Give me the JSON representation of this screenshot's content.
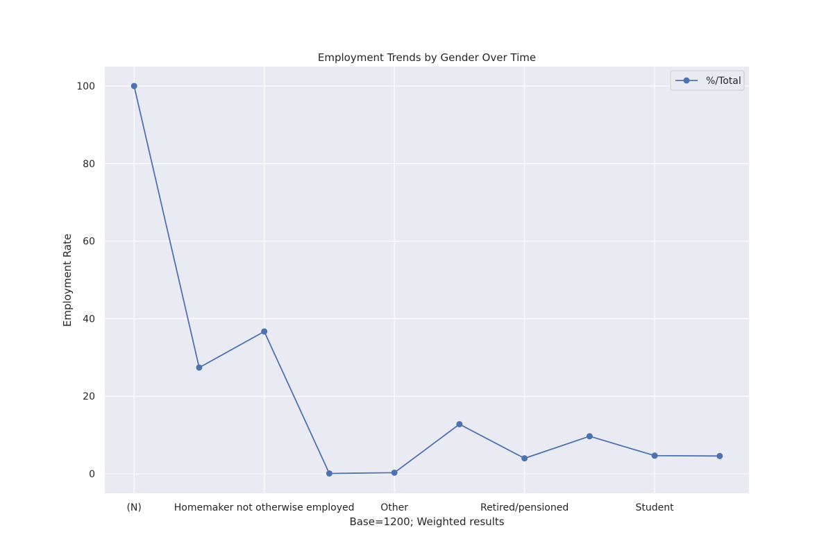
{
  "chart_data": {
    "type": "line",
    "title": "Employment Trends by Gender Over Time",
    "xlabel": "Base=1200; Weighted results",
    "ylabel": "Employment Rate",
    "x_tick_labels": [
      "(N)",
      "Homemaker not otherwise employed",
      "Other",
      "Retired/pensioned",
      "Student"
    ],
    "x_tick_positions": [
      0,
      2,
      4,
      6,
      8
    ],
    "x": [
      0,
      1,
      2,
      3,
      4,
      5,
      6,
      7,
      8,
      9
    ],
    "y_ticks": [
      0,
      20,
      40,
      60,
      80,
      100
    ],
    "ylim": [
      -5,
      105
    ],
    "xlim": [
      -0.45,
      9.45
    ],
    "grid": true,
    "legend_position": "top-right",
    "series": [
      {
        "name": "%/Total",
        "color": "#4c72b0",
        "values": [
          100,
          27.4,
          36.7,
          0.1,
          0.3,
          12.8,
          4.0,
          9.7,
          4.7,
          4.6
        ]
      }
    ]
  }
}
